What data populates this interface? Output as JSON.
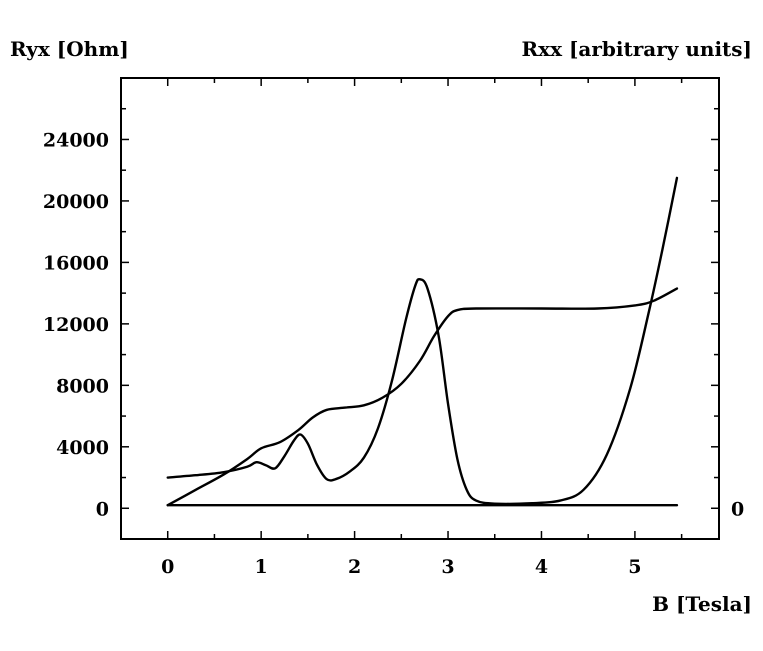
{
  "chart_data": {
    "type": "line",
    "title": "",
    "xlabel": "B [Tesla]",
    "ylabel_left": "Ryx [Ohm]",
    "ylabel_right": "Rxx [arbitrary units]",
    "xlim": [
      -0.5,
      5.9
    ],
    "ylim": [
      -2000,
      28000
    ],
    "x_ticks": [
      "0",
      "1",
      "2",
      "3",
      "4",
      "5"
    ],
    "y_ticks": [
      "0",
      "4000",
      "8000",
      "12000",
      "16000",
      "20000",
      "24000"
    ],
    "y_right_ticks": [
      "0"
    ],
    "grid": false,
    "series": [
      {
        "axis": "left",
        "points": [
          [
            0.0,
            200
          ],
          [
            0.3,
            1200
          ],
          [
            0.6,
            2200
          ],
          [
            0.85,
            3200
          ],
          [
            1.0,
            3900
          ],
          [
            1.2,
            4300
          ],
          [
            1.4,
            5100
          ],
          [
            1.55,
            5900
          ],
          [
            1.7,
            6400
          ],
          [
            1.9,
            6550
          ],
          [
            2.1,
            6700
          ],
          [
            2.3,
            7200
          ],
          [
            2.5,
            8100
          ],
          [
            2.7,
            9600
          ],
          [
            2.85,
            11200
          ],
          [
            3.0,
            12500
          ],
          [
            3.1,
            12900
          ],
          [
            3.3,
            13000
          ],
          [
            4.0,
            13000
          ],
          [
            4.6,
            13000
          ],
          [
            5.0,
            13200
          ],
          [
            5.2,
            13500
          ],
          [
            5.45,
            14300
          ]
        ]
      },
      {
        "axis": "right",
        "points": [
          [
            0.0,
            2000
          ],
          [
            0.3,
            2150
          ],
          [
            0.6,
            2350
          ],
          [
            0.85,
            2700
          ],
          [
            0.95,
            3000
          ],
          [
            1.05,
            2800
          ],
          [
            1.15,
            2600
          ],
          [
            1.25,
            3400
          ],
          [
            1.35,
            4400
          ],
          [
            1.42,
            4800
          ],
          [
            1.5,
            4200
          ],
          [
            1.6,
            2800
          ],
          [
            1.7,
            1900
          ],
          [
            1.8,
            1900
          ],
          [
            1.95,
            2400
          ],
          [
            2.1,
            3300
          ],
          [
            2.25,
            5200
          ],
          [
            2.4,
            8300
          ],
          [
            2.55,
            12300
          ],
          [
            2.65,
            14500
          ],
          [
            2.7,
            14900
          ],
          [
            2.78,
            14300
          ],
          [
            2.9,
            11200
          ],
          [
            3.0,
            6800
          ],
          [
            3.1,
            3200
          ],
          [
            3.2,
            1200
          ],
          [
            3.3,
            500
          ],
          [
            3.5,
            300
          ],
          [
            3.9,
            330
          ],
          [
            4.2,
            500
          ],
          [
            4.45,
            1200
          ],
          [
            4.7,
            3500
          ],
          [
            4.95,
            7800
          ],
          [
            5.15,
            12800
          ],
          [
            5.3,
            17000
          ],
          [
            5.45,
            21500
          ]
        ]
      },
      {
        "axis": "right",
        "points": [
          [
            0.0,
            200
          ],
          [
            5.45,
            200
          ]
        ]
      }
    ]
  }
}
